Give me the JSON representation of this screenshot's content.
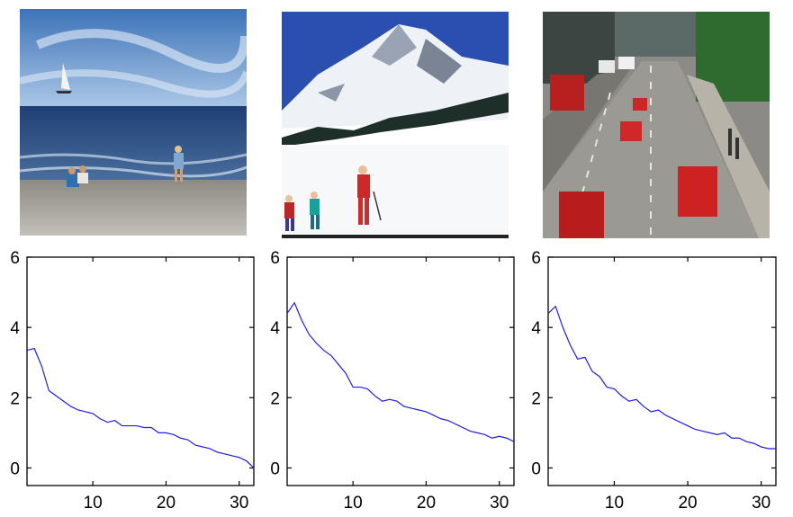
{
  "photos": [
    {
      "name": "beach-photo",
      "subject": "beach with sailboat and children"
    },
    {
      "name": "snow-mountain-photo",
      "subject": "snowy mountain with skiers"
    },
    {
      "name": "city-street-photo",
      "subject": "city street with cars and buses"
    }
  ],
  "colors": {
    "line": "#1f1fdd",
    "axis": "#000000"
  },
  "chart_data": [
    {
      "type": "line",
      "title": "",
      "xlabel": "",
      "ylabel": "",
      "xlim": [
        1,
        32
      ],
      "ylim": [
        -0.5,
        6
      ],
      "xticks": [
        10,
        20,
        30
      ],
      "yticks": [
        0,
        2,
        4,
        6
      ],
      "grid": false,
      "series": [
        {
          "values": [
            3.35,
            3.4,
            2.9,
            2.2,
            2.05,
            1.9,
            1.75,
            1.65,
            1.6,
            1.55,
            1.4,
            1.3,
            1.35,
            1.2,
            1.2,
            1.2,
            1.15,
            1.15,
            1.0,
            1.0,
            0.95,
            0.85,
            0.8,
            0.65,
            0.6,
            0.55,
            0.45,
            0.4,
            0.35,
            0.3,
            0.2,
            0.0
          ]
        }
      ]
    },
    {
      "type": "line",
      "title": "",
      "xlabel": "",
      "ylabel": "",
      "xlim": [
        1,
        32
      ],
      "ylim": [
        -0.5,
        6
      ],
      "xticks": [
        10,
        20,
        30
      ],
      "yticks": [
        0,
        2,
        4,
        6
      ],
      "grid": false,
      "series": [
        {
          "values": [
            4.4,
            4.7,
            4.2,
            3.8,
            3.55,
            3.35,
            3.2,
            2.95,
            2.7,
            2.3,
            2.3,
            2.25,
            2.05,
            1.9,
            1.95,
            1.9,
            1.75,
            1.7,
            1.65,
            1.6,
            1.5,
            1.4,
            1.35,
            1.25,
            1.15,
            1.05,
            1.0,
            0.95,
            0.85,
            0.9,
            0.85,
            0.75
          ]
        }
      ]
    },
    {
      "type": "line",
      "title": "",
      "xlabel": "",
      "ylabel": "",
      "xlim": [
        1,
        32
      ],
      "ylim": [
        -0.5,
        6
      ],
      "xticks": [
        10,
        20,
        30
      ],
      "yticks": [
        0,
        2,
        4,
        6
      ],
      "grid": false,
      "series": [
        {
          "values": [
            4.4,
            4.6,
            4.0,
            3.5,
            3.1,
            3.15,
            2.75,
            2.6,
            2.3,
            2.25,
            2.05,
            1.9,
            1.95,
            1.75,
            1.6,
            1.65,
            1.5,
            1.4,
            1.3,
            1.2,
            1.1,
            1.05,
            1.0,
            0.95,
            1.0,
            0.85,
            0.85,
            0.75,
            0.7,
            0.6,
            0.55,
            0.55
          ]
        }
      ]
    }
  ]
}
